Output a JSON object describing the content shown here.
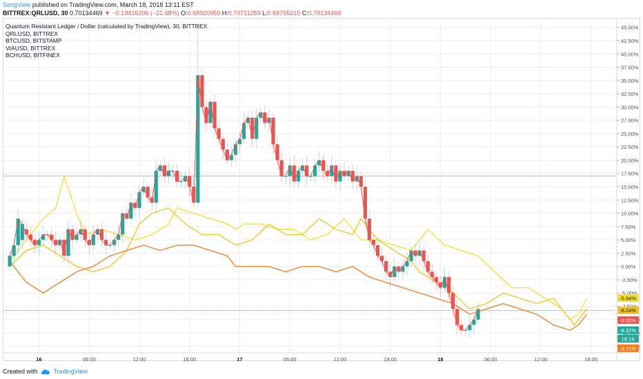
{
  "header": {
    "author": "SengView",
    "published_text": "published on TradingView.com, March 18, 2018 13:11 EST",
    "symbol_line": "BITTREX:QRLUSD, 30",
    "last": "0.70134469",
    "change_arrow": "▼",
    "change": "−0.19416206 (−21.68%)",
    "o_label": "O:",
    "o": "0.68920959",
    "h_label": "H:",
    "h": "0.70711259",
    "l_label": "L:",
    "l": "0.68755215",
    "c_label": "C:",
    "c": "0.70134469"
  },
  "legend": {
    "title": "Quantum Resistant Ledger / Dollar (calculated by TradingView), 30, BITTREX",
    "items": [
      "QRLUSD, BITTREX",
      "BTCUSD, BITSTAMP",
      "VIAUSD, BITTREX",
      "BCHUSD, BITFINEX"
    ]
  },
  "footer": {
    "created_with": "Created with",
    "brand": "TradingView"
  },
  "colors": {
    "up": "#26a69a",
    "down": "#ef5350",
    "qrl_line": "#ef5350",
    "btc": "#f5dd2e",
    "via": "#f0c419",
    "bch": "#f07c1e",
    "grid": "#eceef2",
    "axis_text": "#4a4f5b"
  },
  "chart_data": {
    "type": "line",
    "y_unit": "%",
    "ylim": [
      -16,
      46
    ],
    "y_ticks": [
      "45.00%",
      "42.50%",
      "40.00%",
      "37.50%",
      "35.00%",
      "32.50%",
      "30.00%",
      "27.50%",
      "25.00%",
      "22.50%",
      "20.00%",
      "17.50%",
      "15.00%",
      "12.50%",
      "10.00%",
      "7.50%",
      "5.00%",
      "2.50%",
      "0.00%",
      "-2.50%",
      "-5.00%",
      "-7.50%",
      "-10.00%",
      "-12.50%",
      "-15.00%"
    ],
    "x_ticks": [
      {
        "label": "16",
        "t": 7,
        "bold": true
      },
      {
        "label": "06:00",
        "t": 19
      },
      {
        "label": "12:00",
        "t": 31
      },
      {
        "label": "18:00",
        "t": 43
      },
      {
        "label": "17",
        "t": 55,
        "bold": true
      },
      {
        "label": "06:00",
        "t": 67
      },
      {
        "label": "12:00",
        "t": 79
      },
      {
        "label": "18:00",
        "t": 91
      },
      {
        "label": "18",
        "t": 103,
        "bold": true
      },
      {
        "label": "06:00",
        "t": 115
      },
      {
        "label": "12:00",
        "t": 127
      },
      {
        "label": "18:00",
        "t": 139
      }
    ],
    "t_range": [
      -1.5,
      145
    ],
    "horizontal_refs": [
      17.0,
      -8.3
    ],
    "qrl_candles": [
      [
        0,
        2
      ],
      [
        2,
        4
      ],
      [
        4,
        9
      ],
      [
        5,
        8
      ],
      [
        7,
        6
      ],
      [
        6,
        5
      ],
      [
        5,
        4
      ],
      [
        4,
        5
      ],
      [
        5,
        6
      ],
      [
        6,
        6
      ],
      [
        6,
        5
      ],
      [
        5,
        4
      ],
      [
        4,
        5
      ],
      [
        5,
        2
      ],
      [
        2,
        7
      ],
      [
        7,
        5
      ],
      [
        5,
        6
      ],
      [
        6,
        7
      ],
      [
        7,
        5
      ],
      [
        5,
        4
      ],
      [
        4,
        6
      ],
      [
        6,
        7
      ],
      [
        7,
        5
      ],
      [
        5,
        4
      ],
      [
        4,
        4
      ],
      [
        4,
        5
      ],
      [
        5,
        6
      ],
      [
        6,
        10
      ],
      [
        10,
        9
      ],
      [
        9,
        12
      ],
      [
        12,
        11
      ],
      [
        11,
        14
      ],
      [
        14,
        15
      ],
      [
        15,
        13
      ],
      [
        13,
        12
      ],
      [
        12,
        18
      ],
      [
        18,
        19
      ],
      [
        19,
        17
      ],
      [
        17,
        18
      ],
      [
        18,
        18
      ],
      [
        18,
        16
      ],
      [
        16,
        16
      ],
      [
        16,
        17
      ],
      [
        17,
        15
      ],
      [
        15,
        12
      ],
      [
        12,
        36
      ],
      [
        36,
        30
      ],
      [
        30,
        27
      ],
      [
        27,
        31
      ],
      [
        31,
        26
      ],
      [
        26,
        24
      ],
      [
        24,
        22
      ],
      [
        22,
        20
      ],
      [
        20,
        21
      ],
      [
        21,
        23
      ],
      [
        23,
        24
      ],
      [
        24,
        27
      ],
      [
        27,
        28
      ],
      [
        28,
        24
      ],
      [
        24,
        28
      ],
      [
        28,
        29
      ],
      [
        29,
        27
      ],
      [
        27,
        28
      ],
      [
        28,
        23
      ],
      [
        23,
        20
      ],
      [
        20,
        17
      ],
      [
        17,
        17
      ],
      [
        17,
        19
      ],
      [
        19,
        16
      ],
      [
        16,
        18
      ],
      [
        18,
        19
      ],
      [
        19,
        17
      ],
      [
        17,
        17
      ],
      [
        17,
        19
      ],
      [
        19,
        20
      ],
      [
        20,
        18
      ],
      [
        18,
        17
      ],
      [
        17,
        19
      ],
      [
        19,
        16
      ],
      [
        16,
        18
      ],
      [
        18,
        17
      ],
      [
        17,
        18
      ],
      [
        18,
        16
      ],
      [
        16,
        17
      ],
      [
        17,
        15
      ],
      [
        15,
        9
      ],
      [
        9,
        5
      ],
      [
        5,
        4
      ],
      [
        4,
        2
      ],
      [
        2,
        1
      ],
      [
        1,
        -1
      ],
      [
        -1,
        -2
      ],
      [
        -2,
        0
      ],
      [
        0,
        -1
      ],
      [
        -1,
        0
      ],
      [
        0,
        1
      ],
      [
        1,
        3
      ],
      [
        3,
        2
      ],
      [
        2,
        3
      ],
      [
        3,
        1
      ],
      [
        1,
        -1
      ],
      [
        -1,
        -2
      ],
      [
        -2,
        -3
      ],
      [
        -3,
        -4
      ],
      [
        -4,
        -2
      ],
      [
        -2,
        -5
      ],
      [
        -5,
        -8
      ],
      [
        -8,
        -11
      ],
      [
        -11,
        -12
      ],
      [
        -12,
        -12
      ],
      [
        -12,
        -11
      ],
      [
        -11,
        -10
      ],
      [
        -10,
        -8
      ]
    ],
    "series": [
      {
        "name": "BTCUSD, BITSTAMP",
        "color_key": "btc",
        "end_label": "-5.94%",
        "points": [
          [
            0,
            1
          ],
          [
            4,
            5
          ],
          [
            8,
            9
          ],
          [
            11,
            11
          ],
          [
            13,
            17
          ],
          [
            16,
            10
          ],
          [
            18,
            6
          ],
          [
            22,
            7
          ],
          [
            26,
            6
          ],
          [
            30,
            5
          ],
          [
            34,
            6
          ],
          [
            38,
            8
          ],
          [
            40,
            11
          ],
          [
            44,
            10
          ],
          [
            48,
            9
          ],
          [
            52,
            8
          ],
          [
            54,
            7
          ],
          [
            56,
            8
          ],
          [
            60,
            8
          ],
          [
            64,
            7
          ],
          [
            68,
            7
          ],
          [
            72,
            5
          ],
          [
            76,
            6
          ],
          [
            80,
            9
          ],
          [
            84,
            5
          ],
          [
            88,
            5
          ],
          [
            92,
            4
          ],
          [
            96,
            3
          ],
          [
            100,
            7
          ],
          [
            104,
            4
          ],
          [
            108,
            3
          ],
          [
            112,
            2
          ],
          [
            116,
            -1
          ],
          [
            120,
            -4
          ],
          [
            124,
            -4
          ],
          [
            128,
            -6
          ],
          [
            132,
            -8
          ],
          [
            134,
            -10
          ],
          [
            136,
            -9
          ],
          [
            138,
            -6
          ]
        ]
      },
      {
        "name": "VIAUSD, BITTREX",
        "color_key": "via",
        "end_label": "-8.24%",
        "points": [
          [
            0,
            0
          ],
          [
            4,
            3
          ],
          [
            8,
            4
          ],
          [
            12,
            2
          ],
          [
            16,
            0
          ],
          [
            20,
            -1
          ],
          [
            24,
            0
          ],
          [
            28,
            3
          ],
          [
            31,
            8
          ],
          [
            34,
            10
          ],
          [
            38,
            11
          ],
          [
            42,
            8
          ],
          [
            46,
            6
          ],
          [
            50,
            6
          ],
          [
            54,
            4
          ],
          [
            58,
            5
          ],
          [
            62,
            8
          ],
          [
            66,
            6
          ],
          [
            70,
            6
          ],
          [
            74,
            9
          ],
          [
            78,
            7
          ],
          [
            82,
            6
          ],
          [
            84,
            9
          ],
          [
            88,
            5
          ],
          [
            92,
            3
          ],
          [
            96,
            1
          ],
          [
            98,
            -1
          ],
          [
            102,
            -3
          ],
          [
            106,
            -5
          ],
          [
            110,
            -8
          ],
          [
            114,
            -7
          ],
          [
            118,
            -5
          ],
          [
            122,
            -6
          ],
          [
            126,
            -7
          ],
          [
            130,
            -6
          ],
          [
            132,
            -8
          ],
          [
            135,
            -11
          ],
          [
            138,
            -8
          ]
        ]
      },
      {
        "name": "BCHUSD, BITFINEX",
        "color_key": "bch",
        "end_label": "-8.71%",
        "points": [
          [
            0,
            1
          ],
          [
            4,
            -3
          ],
          [
            8,
            -5
          ],
          [
            12,
            -3
          ],
          [
            16,
            -1
          ],
          [
            20,
            0
          ],
          [
            24,
            2
          ],
          [
            28,
            3
          ],
          [
            32,
            4
          ],
          [
            36,
            3
          ],
          [
            40,
            4
          ],
          [
            44,
            4
          ],
          [
            48,
            3
          ],
          [
            52,
            2
          ],
          [
            54,
            0
          ],
          [
            58,
            0
          ],
          [
            62,
            0
          ],
          [
            66,
            -1
          ],
          [
            70,
            0
          ],
          [
            74,
            0
          ],
          [
            78,
            -1
          ],
          [
            82,
            0
          ],
          [
            86,
            -2
          ],
          [
            90,
            -3
          ],
          [
            94,
            -4
          ],
          [
            98,
            -5
          ],
          [
            102,
            -6
          ],
          [
            106,
            -7
          ],
          [
            110,
            -9
          ],
          [
            114,
            -8
          ],
          [
            118,
            -7
          ],
          [
            122,
            -8
          ],
          [
            126,
            -9
          ],
          [
            130,
            -11
          ],
          [
            134,
            -12
          ],
          [
            136,
            -11
          ],
          [
            138,
            -9
          ]
        ]
      }
    ],
    "right_labels": [
      {
        "text": "-5.94%",
        "y": -5.94,
        "color_key": "btc",
        "dark_text": true
      },
      {
        "text": "-8.24%",
        "y": -8.24,
        "color_key": "via",
        "dark_text": true
      },
      {
        "text": "-8.32%",
        "y": -10.1,
        "color_key": "down",
        "dark_text": false
      },
      {
        "text": "-8.32%",
        "y": -12.0,
        "color_key": "up",
        "dark_text": false
      },
      {
        "text": "18:19",
        "y": -13.6,
        "color_key": "up",
        "dark_text": false
      },
      {
        "text": "-8.71%",
        "y": -15.4,
        "color_key": "bch",
        "dark_text": false
      }
    ]
  }
}
